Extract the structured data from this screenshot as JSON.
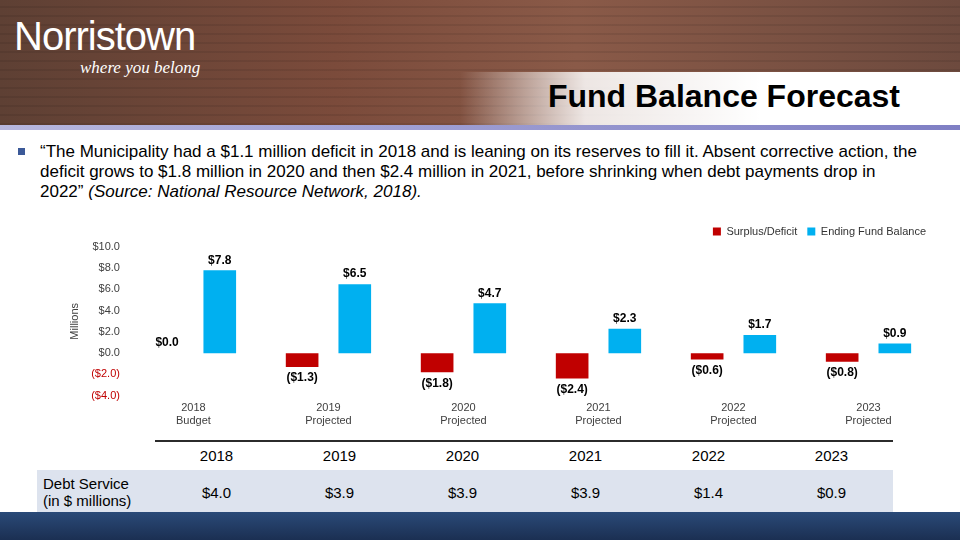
{
  "header": {
    "logo": "Norristown",
    "tagline": "where you belong",
    "title": "Fund Balance Forecast"
  },
  "bullet": {
    "quote": "“The Municipality had a $1.1 million deficit in 2018 and is leaning on its reserves to fill it. Absent corrective action, the deficit grows to $1.8 million in 2020 and then $2.4 million in 2021, before shrinking when debt payments drop in 2022”",
    "source": "(Source: National Resource Network, 2018)."
  },
  "chart_data": {
    "type": "bar",
    "categories": [
      "2018 Budget",
      "2019 Projected",
      "2020 Projected",
      "2021 Projected",
      "2022 Projected",
      "2023 Projected"
    ],
    "y_label": "Millions",
    "ylim": [
      -4,
      10
    ],
    "yticks": [
      {
        "value": -4,
        "label": "($4.0)"
      },
      {
        "value": -2,
        "label": "($2.0)"
      },
      {
        "value": 0,
        "label": "$0.0"
      },
      {
        "value": 2,
        "label": "$2.0"
      },
      {
        "value": 4,
        "label": "$4.0"
      },
      {
        "value": 6,
        "label": "$6.0"
      },
      {
        "value": 8,
        "label": "$8.0"
      },
      {
        "value": 10,
        "label": "$10.0"
      }
    ],
    "grid": false,
    "legend": "upper right",
    "data_labels": true,
    "series": [
      {
        "name": "Surplus/Deficit",
        "color": "#c00000",
        "values": [
          0.0,
          -1.3,
          -1.8,
          -2.4,
          -0.6,
          -0.8
        ],
        "value_labels": [
          "$0.0",
          "($1.3)",
          "($1.8)",
          "($2.4)",
          "($0.6)",
          "($0.8)"
        ]
      },
      {
        "name": "Ending Fund Balance",
        "color": "#00b0f0",
        "values": [
          7.8,
          6.5,
          4.7,
          2.3,
          1.7,
          0.9
        ],
        "value_labels": [
          "$7.8",
          "$6.5",
          "$4.7",
          "$2.3",
          "$1.7",
          "$0.9"
        ]
      }
    ]
  },
  "table": {
    "header": [
      "2018",
      "2019",
      "2020",
      "2021",
      "2022",
      "2023"
    ],
    "rows": [
      {
        "label": [
          "Debt Service",
          "(in $ millions)"
        ],
        "cells": [
          "$4.0",
          "$3.9",
          "$3.9",
          "$3.9",
          "$1.4",
          "$0.9"
        ]
      }
    ]
  }
}
